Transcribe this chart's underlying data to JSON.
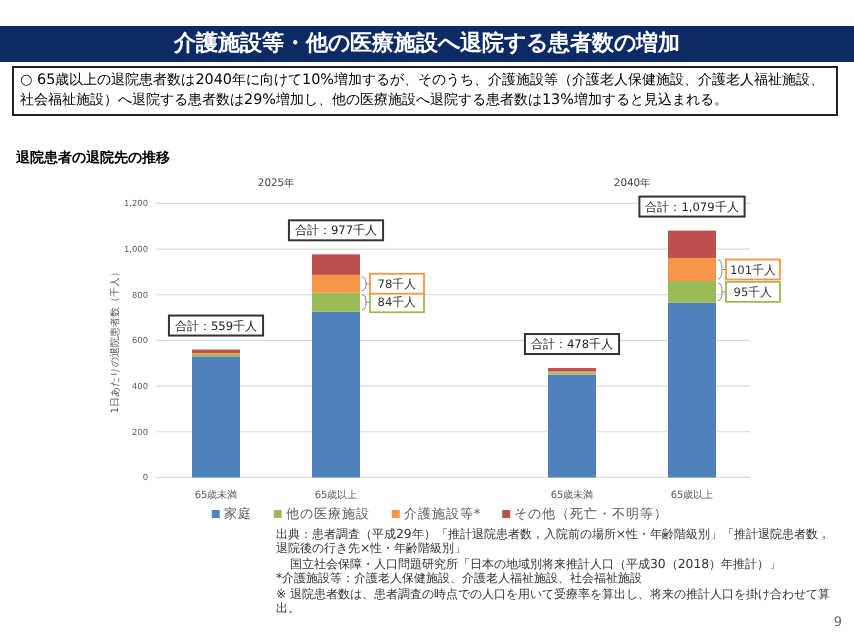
{
  "chart_data": {
    "type": "bar",
    "stacked": true,
    "title": "介護施設等・他の医療施設へ退院する患者数の増加",
    "subtitle": "○ 65歳以上の退院患者数は2040年に向けて10%増加するが、そのうち、介護施設等（介護老人保健施設、介護老人福祉施設、社会福祉施設）へ退院する患者数は29%増加し、他の医療施設へ退院する患者数は13%増加すると見込まれる。",
    "ylabel": "1日あたりの退院患者数（千人）",
    "categories": [
      "65歳未満",
      "65歳以上",
      "65歳未満",
      "65歳以上"
    ],
    "series": [
      {
        "name": "家庭",
        "color": "#4f81bd",
        "values": [
          530,
          725,
          450,
          765
        ]
      },
      {
        "name": "他の医療施設",
        "color": "#9bbb59",
        "values": [
          10,
          84,
          10,
          95
        ],
        "value_labels": [
          null,
          "84千人",
          null,
          "95千人"
        ]
      },
      {
        "name": "介護施設等*",
        "color": "#f79646",
        "values": [
          5,
          78,
          4,
          101
        ],
        "value_labels": [
          null,
          "78千人",
          null,
          "101千人"
        ]
      },
      {
        "name": "その他（死亡・不明等）",
        "color": "#c0504d",
        "values": [
          15,
          90,
          15,
          120
        ]
      }
    ],
    "totals": [
      "合計：559千人",
      "合計：977千人",
      "合計：478千人",
      "合計：1,079千人"
    ],
    "ylim": [
      0,
      1200
    ],
    "yticks": [
      0,
      200,
      400,
      600,
      800,
      {
        "value": 1000,
        "label": "1,000"
      },
      {
        "value": 1200,
        "label": "1,200"
      }
    ],
    "grid": "y",
    "legend": "bottom",
    "annotations": [
      "退院患者の退院先の推移",
      "2025年",
      "2040年",
      "出典：患者調査（平成29年）「推計退院患者数，入院前の場所×性・年齢階級別」「推計退院患者数，退院後の行き先×性・年齢階級別」",
      "国立社会保障・人口問題研究所「日本の地域別将来推計人口（平成30（2018）年推計）」",
      "*介護施設等：介護老人保健施設、介護老人福祉施設、社会福祉施設",
      "※ 退院患者数は、患者調査の時点での人口を用いて受療率を算出し、将来の推計人口を掛け合わせて算出。",
      "9"
    ]
  }
}
